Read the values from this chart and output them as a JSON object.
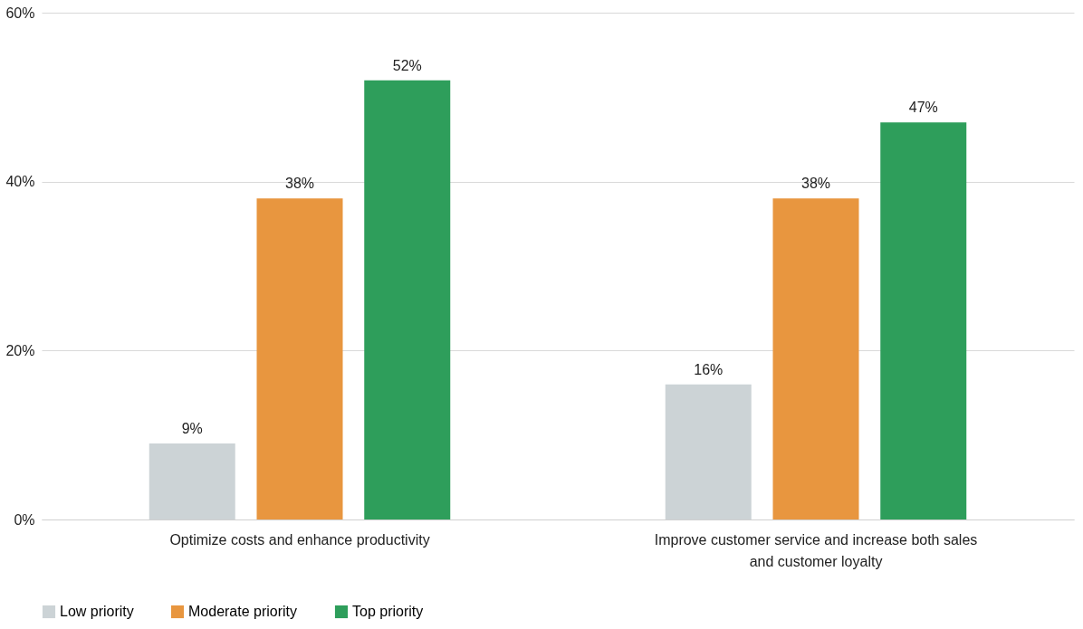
{
  "chart_data": {
    "type": "bar",
    "categories": [
      "Optimize costs and enhance productivity",
      "Improve customer service and increase both sales and customer loyalty"
    ],
    "series": [
      {
        "name": "Low priority",
        "color": "#ccd3d6",
        "values": [
          9,
          16
        ],
        "value_labels": [
          "9%",
          "16%"
        ]
      },
      {
        "name": "Moderate priority",
        "color": "#e8963f",
        "values": [
          38,
          38
        ],
        "value_labels": [
          "38%",
          "38%"
        ]
      },
      {
        "name": "Top priority",
        "color": "#2e9e5b",
        "values": [
          52,
          47
        ],
        "value_labels": [
          "52%",
          "47%"
        ]
      }
    ],
    "ylim": [
      0,
      60
    ],
    "yticks": [
      {
        "value": 0,
        "label": "0%"
      },
      {
        "value": 20,
        "label": "20%"
      },
      {
        "value": 40,
        "label": "40%"
      },
      {
        "value": 60,
        "label": "60%"
      }
    ],
    "grid": "y",
    "legend": "bottom"
  }
}
